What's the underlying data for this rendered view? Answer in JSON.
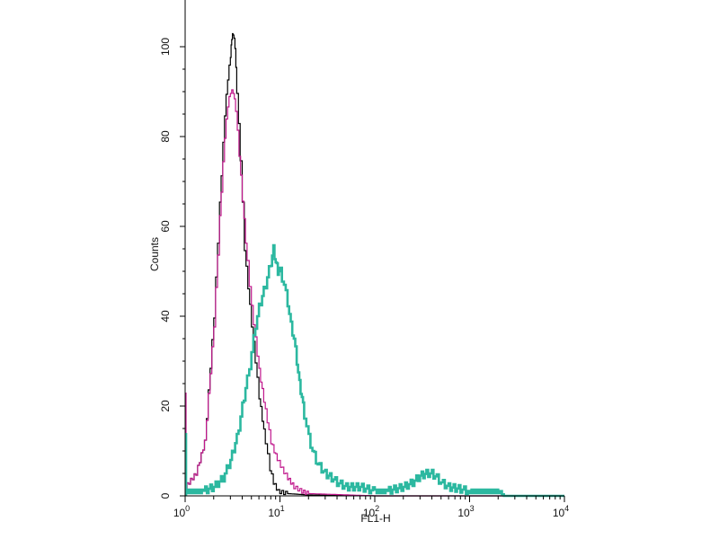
{
  "chart_data": {
    "type": "line",
    "title": "",
    "xlabel": "FL1-H",
    "ylabel": "Counts",
    "xscale": "log",
    "xlim": [
      1,
      10000
    ],
    "ylim": [
      0,
      110
    ],
    "x_ticks": [
      {
        "value": 1,
        "base": "10",
        "exp": "0"
      },
      {
        "value": 10,
        "base": "10",
        "exp": "1"
      },
      {
        "value": 100,
        "base": "10",
        "exp": "2"
      },
      {
        "value": 1000,
        "base": "10",
        "exp": "3"
      },
      {
        "value": 10000,
        "base": "10",
        "exp": "4"
      }
    ],
    "y_ticks": [
      {
        "value": 0,
        "label": "0"
      },
      {
        "value": 20,
        "label": "20"
      },
      {
        "value": 40,
        "label": "40"
      },
      {
        "value": 60,
        "label": "60"
      },
      {
        "value": 80,
        "label": "80"
      },
      {
        "value": 100,
        "label": "100"
      }
    ],
    "grid": false,
    "series": [
      {
        "color": "#000000",
        "stroke_width": 1.2,
        "x": [
          1.0,
          1.3,
          1.6,
          2.0,
          2.3,
          2.6,
          2.8,
          3.0,
          3.1,
          3.2,
          3.35,
          3.5,
          3.8,
          4.2,
          5.0,
          6.0,
          7.0,
          7.8,
          8.5,
          9.5,
          12,
          20,
          100,
          10000
        ],
        "y": [
          2,
          5,
          12,
          40,
          65,
          85,
          93,
          98,
          102,
          103,
          100,
          90,
          75,
          55,
          38,
          22,
          12,
          6,
          3,
          1,
          0.5,
          0.2,
          0,
          0
        ]
      },
      {
        "color": "#c0178c",
        "stroke_width": 1.2,
        "x": [
          1.0,
          1.3,
          1.6,
          2.0,
          2.3,
          2.6,
          2.8,
          3.0,
          3.2,
          3.4,
          3.7,
          4.0,
          4.5,
          5.0,
          6.0,
          7.0,
          8.0,
          9.0,
          10.5,
          12,
          14,
          17,
          20,
          100,
          10000
        ],
        "y": [
          2,
          5,
          12,
          38,
          62,
          80,
          87,
          90,
          90,
          86,
          76,
          66,
          52,
          42,
          28,
          19,
          12,
          9,
          6,
          4,
          2,
          1,
          0.5,
          0,
          0
        ],
        "spike": {
          "x": 1.0,
          "y_top": 23
        }
      },
      {
        "color": "#2cb8a0",
        "stroke_width": 2.6,
        "x": [
          1.0,
          1.2,
          1.5,
          2.0,
          2.5,
          3.0,
          3.5,
          4.0,
          4.5,
          5.0,
          5.5,
          6.0,
          7.0,
          8.0,
          8.5,
          9.0,
          9.5,
          10.0,
          11.0,
          12.0,
          13.0,
          14.0,
          15.0,
          16.0,
          17.0,
          18.0,
          20.0,
          22.0,
          25.0,
          30.0,
          35.0,
          40.0,
          50.0,
          70.0,
          100,
          130,
          160,
          200,
          250,
          300,
          350,
          400,
          450,
          500,
          600,
          800,
          1000,
          1500,
          2000,
          2300,
          10000
        ],
        "y": [
          1,
          1,
          1,
          2,
          4,
          8,
          13,
          20,
          26,
          32,
          38,
          42,
          47,
          52,
          55,
          52,
          50,
          50,
          47,
          43,
          38,
          35,
          30,
          25,
          22,
          18,
          13,
          10,
          7,
          5,
          4,
          3,
          2,
          2,
          1,
          1,
          1.5,
          2,
          3,
          4.5,
          5,
          5,
          4,
          3,
          2,
          1.5,
          1,
          1,
          1,
          0,
          0
        ],
        "spike": {
          "x": 1.0,
          "y_top": 14
        }
      }
    ]
  }
}
